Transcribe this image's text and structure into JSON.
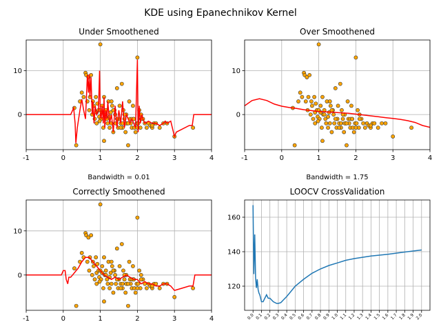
{
  "figure": {
    "suptitle": "KDE using Epanechnikov Kernel"
  },
  "colors": {
    "kde_line": "#ff0000",
    "point_fill": "#ffa500",
    "point_edge": "#333333",
    "cv_line": "#1f77b4",
    "grid": "#b0b0b0"
  },
  "chart_data": [
    {
      "id": "under",
      "type": "line+scatter",
      "title": "Under Smoothened",
      "xlabel": "Bandwidth = 0.01",
      "xlim": [
        -1,
        4
      ],
      "ylim": [
        -8,
        17
      ],
      "xticks": [
        "-1",
        "0",
        "1",
        "2",
        "3",
        "4"
      ],
      "xtick_values": [
        -1,
        0,
        1,
        2,
        3,
        4
      ],
      "yticks": [
        "0",
        "10"
      ],
      "ytick_values": [
        0,
        10
      ],
      "grid": true,
      "kde_x": [
        -1,
        0.2,
        0.28,
        0.32,
        0.34,
        0.38,
        0.45,
        0.5,
        0.55,
        0.6,
        0.62,
        0.65,
        0.68,
        0.7,
        0.72,
        0.75,
        0.78,
        0.8,
        0.83,
        0.86,
        0.9,
        0.95,
        0.98,
        1.0,
        1.02,
        1.05,
        1.08,
        1.1,
        1.12,
        1.15,
        1.18,
        1.2,
        1.25,
        1.3,
        1.35,
        1.4,
        1.45,
        1.5,
        1.55,
        1.6,
        1.65,
        1.7,
        1.75,
        1.8,
        1.85,
        1.9,
        1.95,
        2.0,
        2.02,
        2.05,
        2.08,
        2.1,
        2.12,
        2.15,
        2.2,
        2.3,
        2.4,
        2.5,
        2.6,
        2.7,
        2.75,
        2.8,
        2.9,
        3.0,
        3.05,
        3.4,
        3.48,
        3.52,
        4.0
      ],
      "kde_y": [
        0,
        0,
        1.5,
        -2,
        -6.5,
        -3,
        1,
        3.5,
        1,
        -1,
        3,
        9,
        5,
        9.2,
        4,
        8.5,
        0,
        3,
        -2,
        2,
        0,
        1,
        10,
        0,
        -1,
        2,
        -2,
        4,
        -3,
        1,
        -1,
        3,
        -2,
        0,
        -4,
        2,
        -3,
        1,
        -2,
        3,
        -3,
        0,
        -1,
        -2,
        -1,
        -2,
        -3,
        12.5,
        -4,
        2,
        -2,
        -1,
        0,
        -1,
        -2,
        -1.5,
        -2,
        -2,
        -2.5,
        -2,
        -1.5,
        -2,
        -1.5,
        -5,
        -4,
        -2.5,
        -2.5,
        0,
        0
      ]
    },
    {
      "id": "over",
      "type": "line+scatter",
      "title": "Over Smoothened",
      "xlabel": "Bandwidth = 1.75",
      "xlim": [
        -1,
        4
      ],
      "ylim": [
        -8,
        17
      ],
      "xticks": [
        "-1",
        "0",
        "1",
        "2",
        "3",
        "4"
      ],
      "xtick_values": [
        -1,
        0,
        1,
        2,
        3,
        4
      ],
      "yticks": [
        "0",
        "10"
      ],
      "ytick_values": [
        0,
        10
      ],
      "grid": true,
      "kde_x": [
        -1,
        -0.8,
        -0.6,
        -0.4,
        -0.2,
        0,
        0.2,
        0.4,
        0.6,
        0.8,
        1.0,
        1.2,
        1.4,
        1.6,
        1.8,
        2.0,
        2.2,
        2.4,
        2.6,
        2.8,
        3.0,
        3.2,
        3.4,
        3.6,
        3.8,
        4.0
      ],
      "kde_y": [
        2,
        3.2,
        3.6,
        3.2,
        2.4,
        1.9,
        1.6,
        1.4,
        1.1,
        0.9,
        0.7,
        0.6,
        0.5,
        0.4,
        0.3,
        0.1,
        -0.1,
        -0.3,
        -0.5,
        -0.7,
        -0.9,
        -1.1,
        -1.4,
        -1.8,
        -2.5,
        -2.9
      ]
    },
    {
      "id": "correct",
      "type": "line+scatter",
      "title": "Correctly Smoothened",
      "xlabel": "",
      "xlim": [
        -1,
        4
      ],
      "ylim": [
        -8,
        17
      ],
      "xticks": [
        "-1",
        "0",
        "1",
        "2",
        "3",
        "4"
      ],
      "xtick_values": [
        -1,
        0,
        1,
        2,
        3,
        4
      ],
      "yticks": [
        "0",
        "10"
      ],
      "ytick_values": [
        0,
        10
      ],
      "grid": true,
      "kde_x": [
        -1,
        -0.05,
        0.0,
        0.05,
        0.08,
        0.12,
        0.15,
        0.2,
        0.25,
        0.3,
        0.35,
        0.4,
        0.5,
        0.6,
        0.7,
        0.8,
        0.9,
        1.0,
        1.1,
        1.2,
        1.3,
        1.4,
        1.5,
        1.6,
        1.7,
        1.8,
        1.9,
        2.0,
        2.1,
        2.2,
        2.3,
        2.4,
        2.5,
        2.6,
        2.7,
        2.8,
        2.9,
        3.0,
        3.2,
        3.4,
        3.5,
        3.55,
        3.6,
        4.0
      ],
      "kde_y": [
        0,
        0,
        1,
        1,
        -1,
        -2,
        -0.5,
        -0.5,
        0,
        0.5,
        1,
        1.5,
        3,
        4,
        4,
        3,
        2,
        1,
        0,
        -0.5,
        -1,
        -0.5,
        -1,
        -0.5,
        0,
        -0.5,
        -1,
        -1,
        -2,
        -1.5,
        -2,
        -2,
        -2.5,
        -2.5,
        -2,
        -2,
        -2.5,
        -3.5,
        -3,
        -2.5,
        -2.5,
        0,
        0,
        0
      ]
    },
    {
      "id": "loocv",
      "type": "line",
      "title": "LOOCV CrossValidation",
      "xlabel": "",
      "xlim": [
        -0.1,
        2.1
      ],
      "ylim": [
        106,
        170
      ],
      "xticks": [
        "0.0",
        "0.1",
        "0.2",
        "0.3",
        "0.4",
        "0.5",
        "0.6",
        "0.7",
        "0.8",
        "0.9",
        "1.0",
        "1.1",
        "1.2",
        "1.3",
        "1.4",
        "1.5",
        "1.6",
        "1.7",
        "1.8",
        "1.9",
        "2.0"
      ],
      "xtick_values": [
        0,
        0.1,
        0.2,
        0.3,
        0.4,
        0.5,
        0.6,
        0.7,
        0.8,
        0.9,
        1.0,
        1.1,
        1.2,
        1.3,
        1.4,
        1.5,
        1.6,
        1.7,
        1.8,
        1.9,
        2.0
      ],
      "yticks": [
        "120",
        "140",
        "160"
      ],
      "ytick_values": [
        120,
        140,
        160
      ],
      "grid": true,
      "x": [
        0.0,
        0.01,
        0.02,
        0.03,
        0.04,
        0.05,
        0.06,
        0.07,
        0.08,
        0.1,
        0.12,
        0.14,
        0.16,
        0.18,
        0.2,
        0.24,
        0.28,
        0.3,
        0.33,
        0.36,
        0.4,
        0.45,
        0.5,
        0.6,
        0.7,
        0.8,
        0.9,
        1.0,
        1.1,
        1.2,
        1.4,
        1.6,
        1.8,
        2.0
      ],
      "y": [
        167,
        127,
        150,
        125,
        119,
        124,
        118,
        116,
        115,
        111,
        111,
        113,
        115,
        113,
        113,
        111,
        110,
        110,
        110.5,
        112,
        114,
        117,
        120,
        124,
        127.5,
        130,
        132,
        133.5,
        135,
        136,
        137.5,
        138.5,
        139.8,
        141
      ]
    }
  ],
  "points": {
    "x": [
      0.3,
      0.35,
      0.45,
      0.5,
      0.55,
      0.6,
      0.62,
      0.65,
      0.68,
      0.7,
      0.72,
      0.75,
      0.78,
      0.8,
      0.82,
      0.85,
      0.88,
      0.9,
      0.92,
      0.95,
      0.97,
      1.0,
      1.02,
      1.05,
      1.08,
      1.1,
      1.1,
      1.12,
      1.15,
      1.18,
      1.2,
      1.22,
      1.25,
      1.28,
      1.3,
      1.32,
      1.35,
      1.38,
      1.4,
      1.42,
      1.45,
      1.48,
      1.5,
      1.52,
      1.55,
      1.58,
      1.6,
      1.62,
      1.65,
      1.68,
      1.7,
      1.72,
      1.75,
      1.78,
      1.8,
      1.82,
      1.85,
      1.88,
      1.9,
      1.92,
      1.95,
      1.98,
      2.0,
      2.02,
      2.05,
      2.08,
      2.1,
      2.15,
      2.2,
      2.25,
      2.3,
      2.35,
      2.4,
      2.45,
      2.5,
      2.6,
      2.7,
      2.8,
      3.0,
      3.5,
      1.0,
      1.5,
      1.7,
      2.1,
      0.9,
      1.15,
      1.3,
      1.55,
      1.85,
      2.4,
      0.98,
      1.05,
      1.25,
      1.45,
      1.6,
      1.75,
      2.0,
      1.35,
      1.65,
      1.9
    ],
    "y": [
      1.5,
      -7,
      3,
      5,
      4,
      9.5,
      9,
      3,
      8.5,
      1,
      4,
      9,
      0,
      3,
      2,
      -1,
      4,
      0.5,
      2.5,
      1,
      -0.5,
      16,
      -1,
      2,
      -3,
      4,
      -6,
      0,
      1,
      -1,
      -2,
      3,
      -3,
      0.5,
      -2,
      2,
      -4,
      1,
      0,
      -2,
      6,
      -3,
      -1,
      2,
      -2,
      7,
      -3,
      1,
      -1,
      -4,
      0,
      -2,
      -7,
      3,
      -1,
      -2,
      -3,
      2,
      -1,
      -3,
      -4,
      -2,
      13,
      -2,
      1,
      -3,
      0,
      -1,
      -2,
      -3,
      -2,
      -2.5,
      -3,
      -2,
      -2,
      -3,
      -2,
      -2,
      -5,
      -3,
      1,
      -1,
      -2,
      -1,
      -2,
      0,
      3,
      -3,
      -1,
      -2.5,
      -1.5,
      0.5,
      -0.5,
      -1,
      -2,
      -2,
      -3,
      1,
      0,
      -1
    ]
  }
}
